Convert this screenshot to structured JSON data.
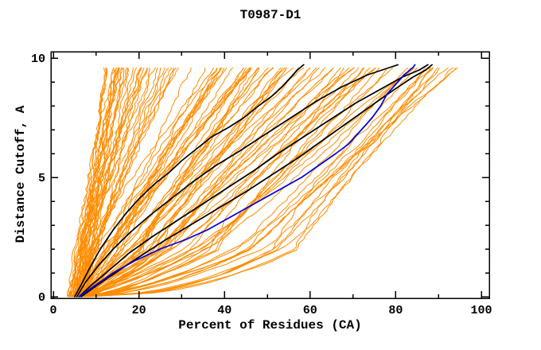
{
  "title": "T0987-D1",
  "axes": {
    "xlabel": "Percent of Residues (CA)",
    "ylabel": "Distance Cutoff, A"
  },
  "chart_data": {
    "type": "line",
    "title": "T0987-D1",
    "xlabel": "Percent of Residues (CA)",
    "ylabel": "Distance Cutoff, A",
    "xlim": [
      0,
      100
    ],
    "ylim": [
      0,
      10
    ],
    "xticks_major": [
      0,
      20,
      40,
      60,
      80,
      100
    ],
    "xticks_minor": [
      10,
      30,
      50,
      70,
      90
    ],
    "yticks_major": [
      0,
      5,
      10
    ],
    "yticks_minor": [
      1,
      2,
      3,
      4,
      6,
      7,
      8,
      9
    ],
    "grid": false,
    "legend": null,
    "frame": "box-with-mirrored-inward-ticks",
    "description": "CASP-style GDT plot for target T0987-D1: cumulative percent of CA residues (x) under each distance cutoff in Angstroms (y). Dense orange bundle = ensemble of predicted models; black and blue curves are highlighted models.",
    "highlighted_series": [
      {
        "name": "highlight-black-1",
        "color": "#000000",
        "points": [
          [
            5,
            0
          ],
          [
            6.5,
            0.5
          ],
          [
            8.5,
            1.2
          ],
          [
            11,
            2.0
          ],
          [
            14,
            2.8
          ],
          [
            17,
            3.5
          ],
          [
            20,
            4.1
          ],
          [
            23.5,
            4.7
          ],
          [
            27,
            5.2
          ],
          [
            30,
            5.7
          ],
          [
            33.5,
            6.2
          ],
          [
            37,
            6.7
          ],
          [
            41,
            7.1
          ],
          [
            44.5,
            7.5
          ],
          [
            48,
            8.0
          ],
          [
            51,
            8.4
          ],
          [
            53.5,
            8.8
          ],
          [
            55.5,
            9.2
          ],
          [
            57,
            9.5
          ],
          [
            58.5,
            9.72
          ]
        ]
      },
      {
        "name": "highlight-black-2",
        "color": "#000000",
        "points": [
          [
            5.5,
            0
          ],
          [
            7.5,
            0.6
          ],
          [
            10.5,
            1.3
          ],
          [
            14,
            2.0
          ],
          [
            18,
            2.7
          ],
          [
            22.5,
            3.4
          ],
          [
            27.5,
            4.1
          ],
          [
            32.5,
            4.8
          ],
          [
            38,
            5.5
          ],
          [
            43.5,
            6.1
          ],
          [
            49.5,
            6.8
          ],
          [
            55.5,
            7.5
          ],
          [
            61.5,
            8.2
          ],
          [
            67.5,
            8.8
          ],
          [
            73.5,
            9.3
          ],
          [
            78.5,
            9.6
          ],
          [
            80.5,
            9.72
          ]
        ]
      },
      {
        "name": "highlight-black-3",
        "color": "#000000",
        "points": [
          [
            6,
            0
          ],
          [
            9,
            0.5
          ],
          [
            13,
            1.1
          ],
          [
            17.5,
            1.8
          ],
          [
            23,
            2.5
          ],
          [
            29,
            3.2
          ],
          [
            35,
            3.9
          ],
          [
            41,
            4.6
          ],
          [
            47,
            5.3
          ],
          [
            52.5,
            6.0
          ],
          [
            58.5,
            6.7
          ],
          [
            64.5,
            7.4
          ],
          [
            70.5,
            8.1
          ],
          [
            76.5,
            8.7
          ],
          [
            81.5,
            9.2
          ],
          [
            85.5,
            9.5
          ],
          [
            87.5,
            9.72
          ]
        ]
      },
      {
        "name": "highlight-black-4",
        "color": "#000000",
        "points": [
          [
            6.5,
            0
          ],
          [
            10,
            0.45
          ],
          [
            14.5,
            1.0
          ],
          [
            19.5,
            1.6
          ],
          [
            25.5,
            2.3
          ],
          [
            32,
            3.0
          ],
          [
            38.5,
            3.7
          ],
          [
            45,
            4.4
          ],
          [
            51,
            5.1
          ],
          [
            57,
            5.8
          ],
          [
            62.5,
            6.5
          ],
          [
            68,
            7.2
          ],
          [
            73.5,
            7.9
          ],
          [
            79,
            8.6
          ],
          [
            84,
            9.2
          ],
          [
            87,
            9.5
          ],
          [
            88.5,
            9.72
          ]
        ]
      },
      {
        "name": "highlight-blue",
        "color": "#0000DD",
        "points": [
          [
            6,
            0
          ],
          [
            10,
            0.5
          ],
          [
            14,
            1.0
          ],
          [
            19,
            1.5
          ],
          [
            25,
            2.0
          ],
          [
            31,
            2.4
          ],
          [
            36,
            2.8
          ],
          [
            41,
            3.3
          ],
          [
            46,
            3.8
          ],
          [
            51,
            4.3
          ],
          [
            55,
            4.7
          ],
          [
            58,
            5.0
          ],
          [
            62,
            5.5
          ],
          [
            66,
            6.0
          ],
          [
            69,
            6.4
          ],
          [
            72,
            7.0
          ],
          [
            74.5,
            7.5
          ],
          [
            76.5,
            8.0
          ],
          [
            78,
            8.5
          ],
          [
            80,
            8.9
          ],
          [
            82,
            9.3
          ],
          [
            84,
            9.6
          ],
          [
            84.5,
            9.72
          ]
        ]
      }
    ],
    "ensemble": {
      "name": "predicted-models",
      "color": "#FF8C00",
      "seed": 20987,
      "start_x_range": [
        3.5,
        8
      ],
      "top_y_range": [
        9.6,
        9.75
      ],
      "buckets": [
        {
          "n": 18,
          "top_x": [
            12,
            18
          ],
          "early": [
            0.08,
            0.16
          ]
        },
        {
          "n": 18,
          "top_x": [
            18,
            30
          ],
          "early": [
            0.1,
            0.2
          ]
        },
        {
          "n": 20,
          "top_x": [
            30,
            48
          ],
          "early": [
            0.14,
            0.28
          ]
        },
        {
          "n": 22,
          "top_x": [
            48,
            68
          ],
          "early": [
            0.2,
            0.38
          ]
        },
        {
          "n": 18,
          "top_x": [
            68,
            85
          ],
          "early": [
            0.28,
            0.48
          ]
        },
        {
          "n": 12,
          "top_x": [
            85,
            96
          ],
          "early": [
            0.4,
            0.62
          ]
        }
      ]
    },
    "colors": {
      "ensemble": "#FF8C00",
      "highlight": "#000000",
      "special": "#0000DD",
      "axis": "#000000"
    }
  }
}
